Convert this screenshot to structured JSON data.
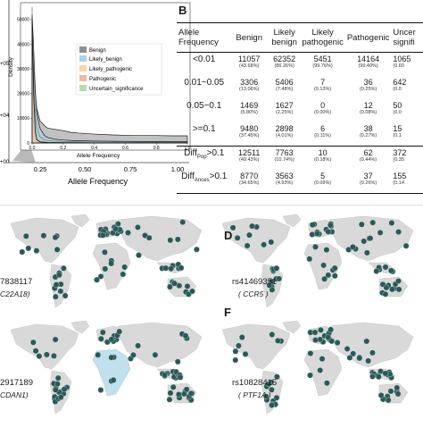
{
  "figure": {
    "panel_a": {
      "letter": "",
      "xlabel": "Allele Frequency",
      "inset": {
        "ylabel": "Density",
        "xlabel": "Allele Frequency",
        "yticks": [
          "0",
          "10000",
          "20000",
          "30000",
          "40000",
          "50000"
        ],
        "xticks": [
          "0.0",
          "0.2",
          "0.4",
          "0.6",
          "0.8",
          "1.0"
        ]
      },
      "outer_xticks": [
        "0.25",
        "0.50",
        "0.75",
        "1.00"
      ],
      "outer_yticks": [
        "+05",
        "+04",
        "+00"
      ],
      "legend_placement": "top-right",
      "legend": [
        {
          "label": "Benign",
          "color": "#8f8f8f"
        },
        {
          "label": "Likely_benign",
          "color": "#a9d4e6"
        },
        {
          "label": "Likely_pathogenic",
          "color": "#f3d9a7"
        },
        {
          "label": "Pathogenic",
          "color": "#f2b7a8"
        },
        {
          "label": "Uncertain_significance",
          "color": "#b9dba6"
        }
      ]
    },
    "panel_b": {
      "letter": "B",
      "header": [
        "Allele\nFrequency",
        "Benign",
        "Likely\nbenign",
        "Likely\npathogenic",
        "Pathogenic",
        "Uncer\nsignifi"
      ],
      "rows": [
        {
          "label": "<0.01",
          "cells": [
            [
              "11057",
              "(43.68%)"
            ],
            [
              "62352",
              "(86.26%)"
            ],
            [
              "5451",
              "(99.76%)"
            ],
            [
              "14164",
              "(99.40%)"
            ],
            [
              "1065",
              "(0.60"
            ]
          ]
        },
        {
          "label": "0.01~0.05",
          "cells": [
            [
              "3306",
              "(13.06%)"
            ],
            [
              "5406",
              "(7.48%)"
            ],
            [
              "7",
              "(0.13%)"
            ],
            [
              "36",
              "(0.25%)"
            ],
            [
              "642",
              "(0.0"
            ]
          ]
        },
        {
          "label": "0.05~0.1",
          "cells": [
            [
              "1469",
              "(5.80%)"
            ],
            [
              "1627",
              "(2.25%)"
            ],
            [
              "0",
              "(0.00%)"
            ],
            [
              "12",
              "(0.08%)"
            ],
            [
              "50",
              "(0.0"
            ]
          ]
        },
        {
          "label": ">=0.1",
          "cells": [
            [
              "9480",
              "(37.45%)"
            ],
            [
              "2898",
              "(4.01%)"
            ],
            [
              "6",
              "(0.11%)"
            ],
            [
              "38",
              "(0.27%)"
            ],
            [
              "15",
              "(0.1"
            ]
          ]
        },
        {
          "label": "Diff_Pop>0.1",
          "label_main": "Diff",
          "label_sub": "Pop",
          "label_tail": ">0.1",
          "cells": [
            [
              "12511",
              "(49.43%)"
            ],
            [
              "7763",
              "(10.74%)"
            ],
            [
              "10",
              "(0.18%)"
            ],
            [
              "62",
              "(0.44%)"
            ],
            [
              "372",
              "(0.35"
            ]
          ]
        },
        {
          "label": "Diff_Ances>0.1",
          "label_main": "Diff",
          "label_sub": "Ances",
          "label_tail": ">0.1",
          "cells": [
            [
              "8770",
              "(34.65%)"
            ],
            [
              "3563",
              "(4.93%)"
            ],
            [
              "5",
              "(0.09%)"
            ],
            [
              "37",
              "(0.26%)"
            ],
            [
              "155",
              "(0.14"
            ]
          ]
        }
      ]
    },
    "map_panels": [
      {
        "id": "C",
        "letter": "",
        "rs": "7838117",
        "gene": "C22A18)"
      },
      {
        "id": "D",
        "letter": "D",
        "rs": "rs41469351",
        "gene": "( CCR5 )"
      },
      {
        "id": "E",
        "letter": "",
        "rs": "2917189",
        "gene": "CDAN1)"
      },
      {
        "id": "F",
        "letter": "F",
        "rs": "rs10828415",
        "gene": "( PTF1A )"
      }
    ],
    "colors": {
      "marker": "#2a5a58",
      "land": "#d9d9d9",
      "highlight_region": "#bfe0ec",
      "ocean": "#ffffff"
    }
  },
  "chart_data": {
    "type": "area",
    "title": "",
    "xlabel": "Allele Frequency",
    "ylabel": "Density",
    "xlim": [
      0,
      1
    ],
    "ylim": [
      0,
      55000
    ],
    "grid": false,
    "legend_placement": "top-right",
    "x": [
      0.0,
      0.01,
      0.02,
      0.03,
      0.05,
      0.08,
      0.1,
      0.15,
      0.2,
      0.25,
      0.3,
      0.4,
      0.5,
      0.6,
      0.7,
      0.8,
      0.9,
      1.0
    ],
    "series": [
      {
        "name": "Benign",
        "values": [
          42000,
          30000,
          20000,
          14000,
          9000,
          7000,
          6000,
          5500,
          5000,
          4300,
          4000,
          3600,
          3300,
          3100,
          3000,
          3000,
          2900,
          2900
        ]
      },
      {
        "name": "Likely_benign",
        "values": [
          52000,
          38000,
          22000,
          12000,
          6000,
          3000,
          2200,
          1500,
          1200,
          1000,
          900,
          800,
          700,
          650,
          600,
          600,
          550,
          500
        ]
      },
      {
        "name": "Likely_pathogenic",
        "values": [
          50000,
          20000,
          5000,
          1500,
          500,
          300,
          200,
          150,
          100,
          100,
          80,
          70,
          60,
          60,
          50,
          50,
          50,
          50
        ]
      },
      {
        "name": "Pathogenic",
        "values": [
          49000,
          19000,
          4500,
          1300,
          450,
          280,
          190,
          140,
          100,
          90,
          80,
          70,
          60,
          60,
          50,
          50,
          50,
          50
        ]
      },
      {
        "name": "Uncertain_significance",
        "values": [
          45000,
          25000,
          12000,
          6000,
          2500,
          1200,
          900,
          700,
          600,
          500,
          450,
          400,
          380,
          350,
          330,
          320,
          310,
          300
        ]
      }
    ]
  }
}
